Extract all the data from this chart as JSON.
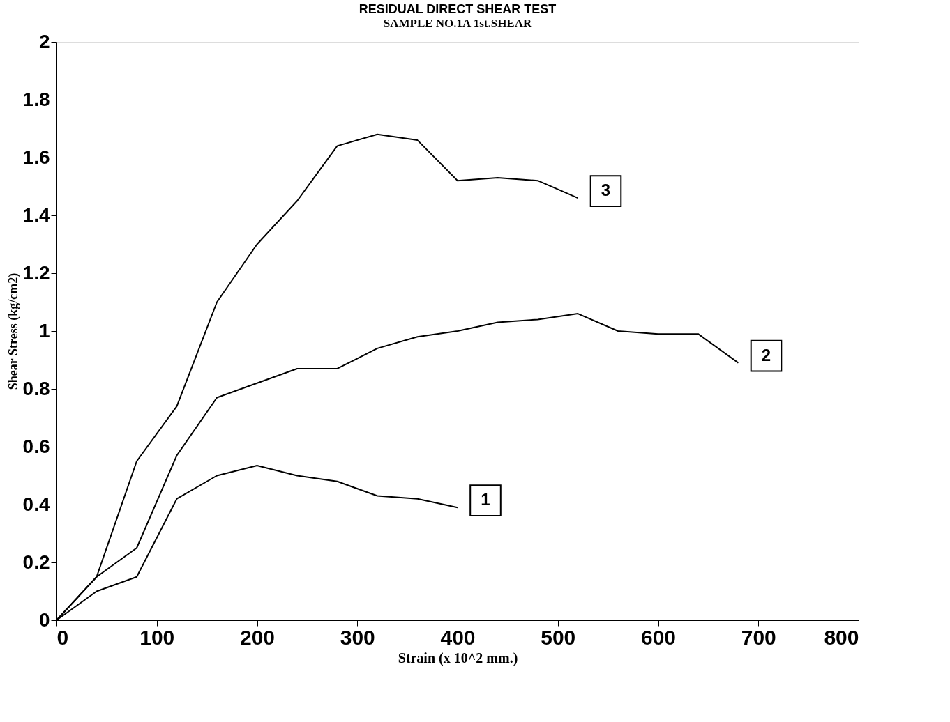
{
  "chart_data": {
    "type": "line",
    "title": "RESIDUAL DIRECT SHEAR TEST",
    "subtitle": "SAMPLE NO.1A 1st.SHEAR",
    "xlabel": "Strain (x 10^2 mm.)",
    "ylabel": "Shear Stress (kg/cm2)",
    "xlim": [
      0,
      800
    ],
    "xticks": [
      0,
      100,
      200,
      300,
      400,
      500,
      600,
      700,
      800
    ],
    "ylim": [
      0,
      2
    ],
    "yticks": [
      0,
      0.2,
      0.4,
      0.6,
      0.8,
      1,
      1.2,
      1.4,
      1.6,
      1.8,
      2
    ],
    "grid": false,
    "legend": false,
    "marker": "none",
    "line_style": "solid",
    "series": [
      {
        "name": "1",
        "color": "#000000",
        "x": [
          0,
          40,
          80,
          120,
          160,
          200,
          240,
          280,
          320,
          360,
          400
        ],
        "values": [
          0,
          0.1,
          0.15,
          0.42,
          0.5,
          0.535,
          0.5,
          0.48,
          0.43,
          0.42,
          0.39
        ]
      },
      {
        "name": "2",
        "color": "#000000",
        "x": [
          0,
          40,
          80,
          120,
          160,
          200,
          240,
          280,
          320,
          360,
          400,
          440,
          480,
          520,
          560,
          600,
          640,
          680
        ],
        "values": [
          0,
          0.15,
          0.25,
          0.57,
          0.77,
          0.82,
          0.87,
          0.87,
          0.94,
          0.98,
          1.0,
          1.03,
          1.04,
          1.06,
          1.0,
          0.99,
          0.99,
          0.89
        ]
      },
      {
        "name": "3",
        "color": "#000000",
        "x": [
          0,
          40,
          80,
          120,
          160,
          200,
          240,
          280,
          320,
          360,
          400,
          440,
          480,
          520
        ],
        "values": [
          0,
          0.15,
          0.55,
          0.74,
          1.1,
          1.3,
          1.45,
          1.64,
          1.68,
          1.66,
          1.52,
          1.53,
          1.52,
          1.46
        ]
      }
    ]
  }
}
